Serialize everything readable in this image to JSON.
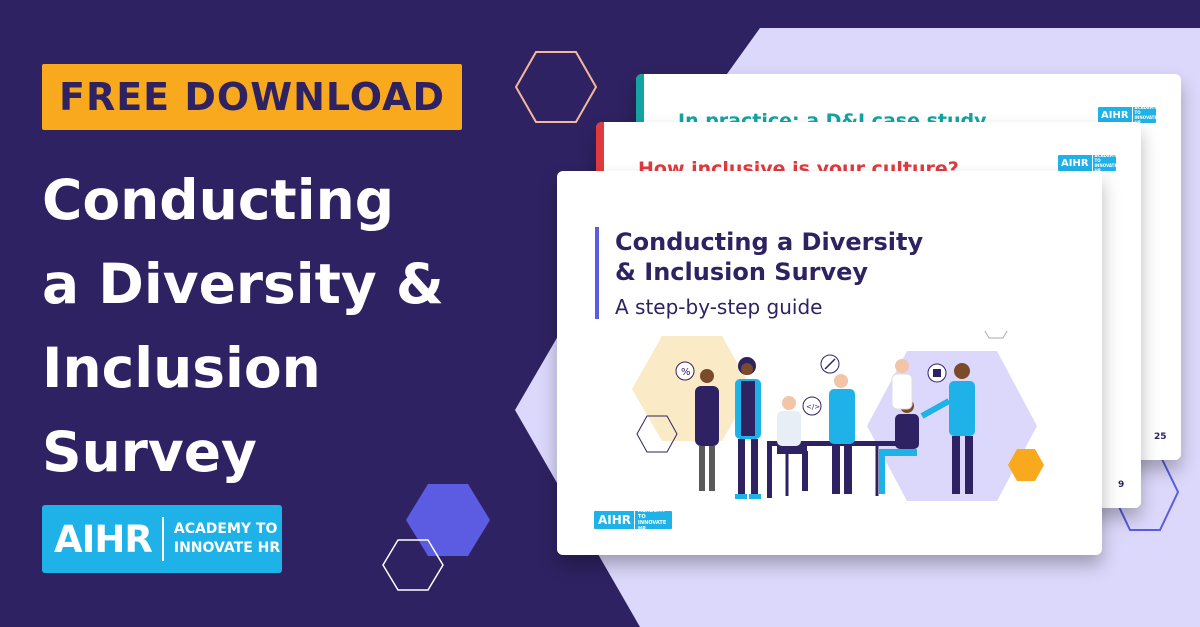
{
  "banner": {
    "badge_label": "FREE DOWNLOAD",
    "headline_lines": [
      "Conducting",
      "a Diversity &",
      "Inclusion",
      "Survey"
    ],
    "logo": {
      "mark": "AIHR",
      "text_line1": "ACADEMY TO",
      "text_line2": "INNOVATE HR"
    }
  },
  "cards": {
    "back": {
      "title": "In practice: a D&I case study",
      "title_color": "#14a3a3",
      "accent_color": "#14a3a3",
      "page_number": "25"
    },
    "middle": {
      "title": "How inclusive is your culture?",
      "title_color": "#e03a3e",
      "accent_color": "#e03a3e",
      "page_number": "9"
    },
    "front": {
      "title_line1": "Conducting a Diversity",
      "title_line2": "& Inclusion Survey",
      "subtitle": "A step-by-step guide",
      "illustration_icons": [
        "percent-icon",
        "arrow-icon",
        "code-icon",
        "thumbs-up-icon"
      ]
    }
  },
  "colors": {
    "background": "#2f2262",
    "badge": "#f8a91d",
    "brand_blue": "#1fb2e9",
    "lavender": "#dcd8fb",
    "accent_purple": "#5b5ce2"
  }
}
